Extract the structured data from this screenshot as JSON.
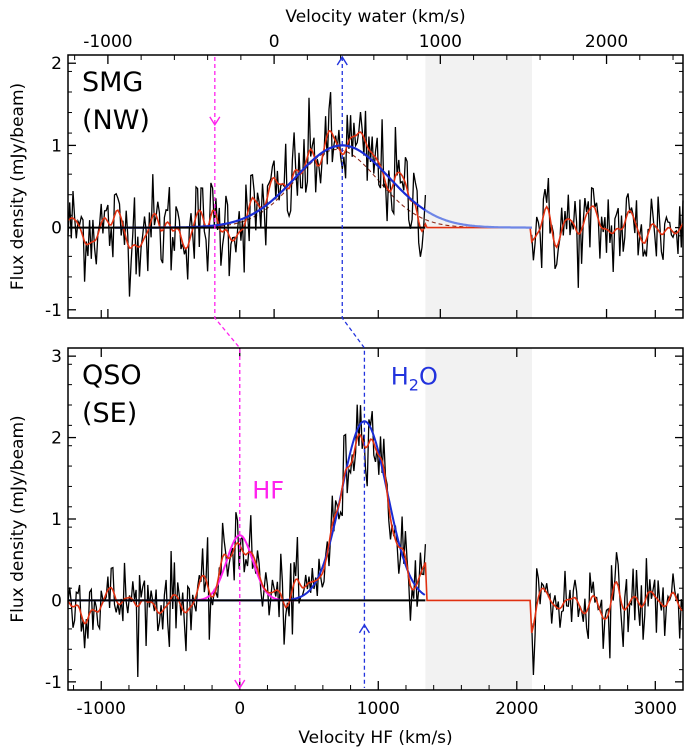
{
  "figure": {
    "top_axis_label": "Velocity water (km/s)",
    "bottom_axis_label": "Velocity HF (km/s)"
  },
  "colors": {
    "spectrum": "#000000",
    "smoothed": "#e03010",
    "fit_blue": "#1a2cd4",
    "fit_light": "#6e86e6",
    "hf_marker": "#ff22ee",
    "h2o_marker": "#2233dd",
    "gap_shade": "#f2f2f2",
    "comp_dashed": "#8b2a1a"
  },
  "chart_data": [
    {
      "type": "line",
      "panel": "top",
      "label_line1": "SMG",
      "label_line2": "(NW)",
      "ylabel": "Flux density (mJy/beam)",
      "xlim_top": [
        -1240,
        2460
      ],
      "xlim_bottom": [
        -1240,
        3200
      ],
      "ylim": [
        -1.1,
        2.1
      ],
      "top_ticks": [
        -1000,
        0,
        1000,
        2000
      ],
      "top_tick_labels": [
        "-1000",
        "0",
        "1000",
        "2000"
      ],
      "y_ticks": [
        -1,
        0,
        1,
        2
      ],
      "y_tick_labels": [
        "-1",
        "0",
        "1",
        "2"
      ],
      "shaded_range_hf": [
        1340,
        2110
      ],
      "gaussian_fit": {
        "center_hf": 740,
        "amplitude": 1.0,
        "sigma": 340
      },
      "dashed_component": {
        "center_hf": 700,
        "amplitude": 0.95,
        "sigma": 300
      },
      "markers_hf": [
        -180,
        740
      ],
      "noise_rms": 0.32
    },
    {
      "type": "line",
      "panel": "bottom",
      "label_line1": "QSO",
      "label_line2": "(SE)",
      "ylabel": "Flux density (mJy/beam)",
      "xlim": [
        -1240,
        3200
      ],
      "ylim": [
        -1.1,
        3.1
      ],
      "x_ticks": [
        -1000,
        0,
        1000,
        2000,
        3000
      ],
      "x_tick_labels": [
        "-1000",
        "0",
        "1000",
        "2000",
        "3000"
      ],
      "y_ticks": [
        -1,
        0,
        1,
        2,
        3
      ],
      "y_tick_labels": [
        "-1",
        "0",
        "1",
        "2",
        "3"
      ],
      "shaded_range_hf": [
        1340,
        2110
      ],
      "hf_line": {
        "label": "HF",
        "center_hf": 0,
        "amplitude": 0.8,
        "sigma": 95
      },
      "h2o_line": {
        "label_main": "H",
        "label_sub": "2",
        "label_end": "O",
        "center_hf": 900,
        "amplitude": 2.2,
        "sigma": 165
      },
      "markers_hf": [
        0,
        900
      ],
      "noise_rms": 0.27
    }
  ]
}
